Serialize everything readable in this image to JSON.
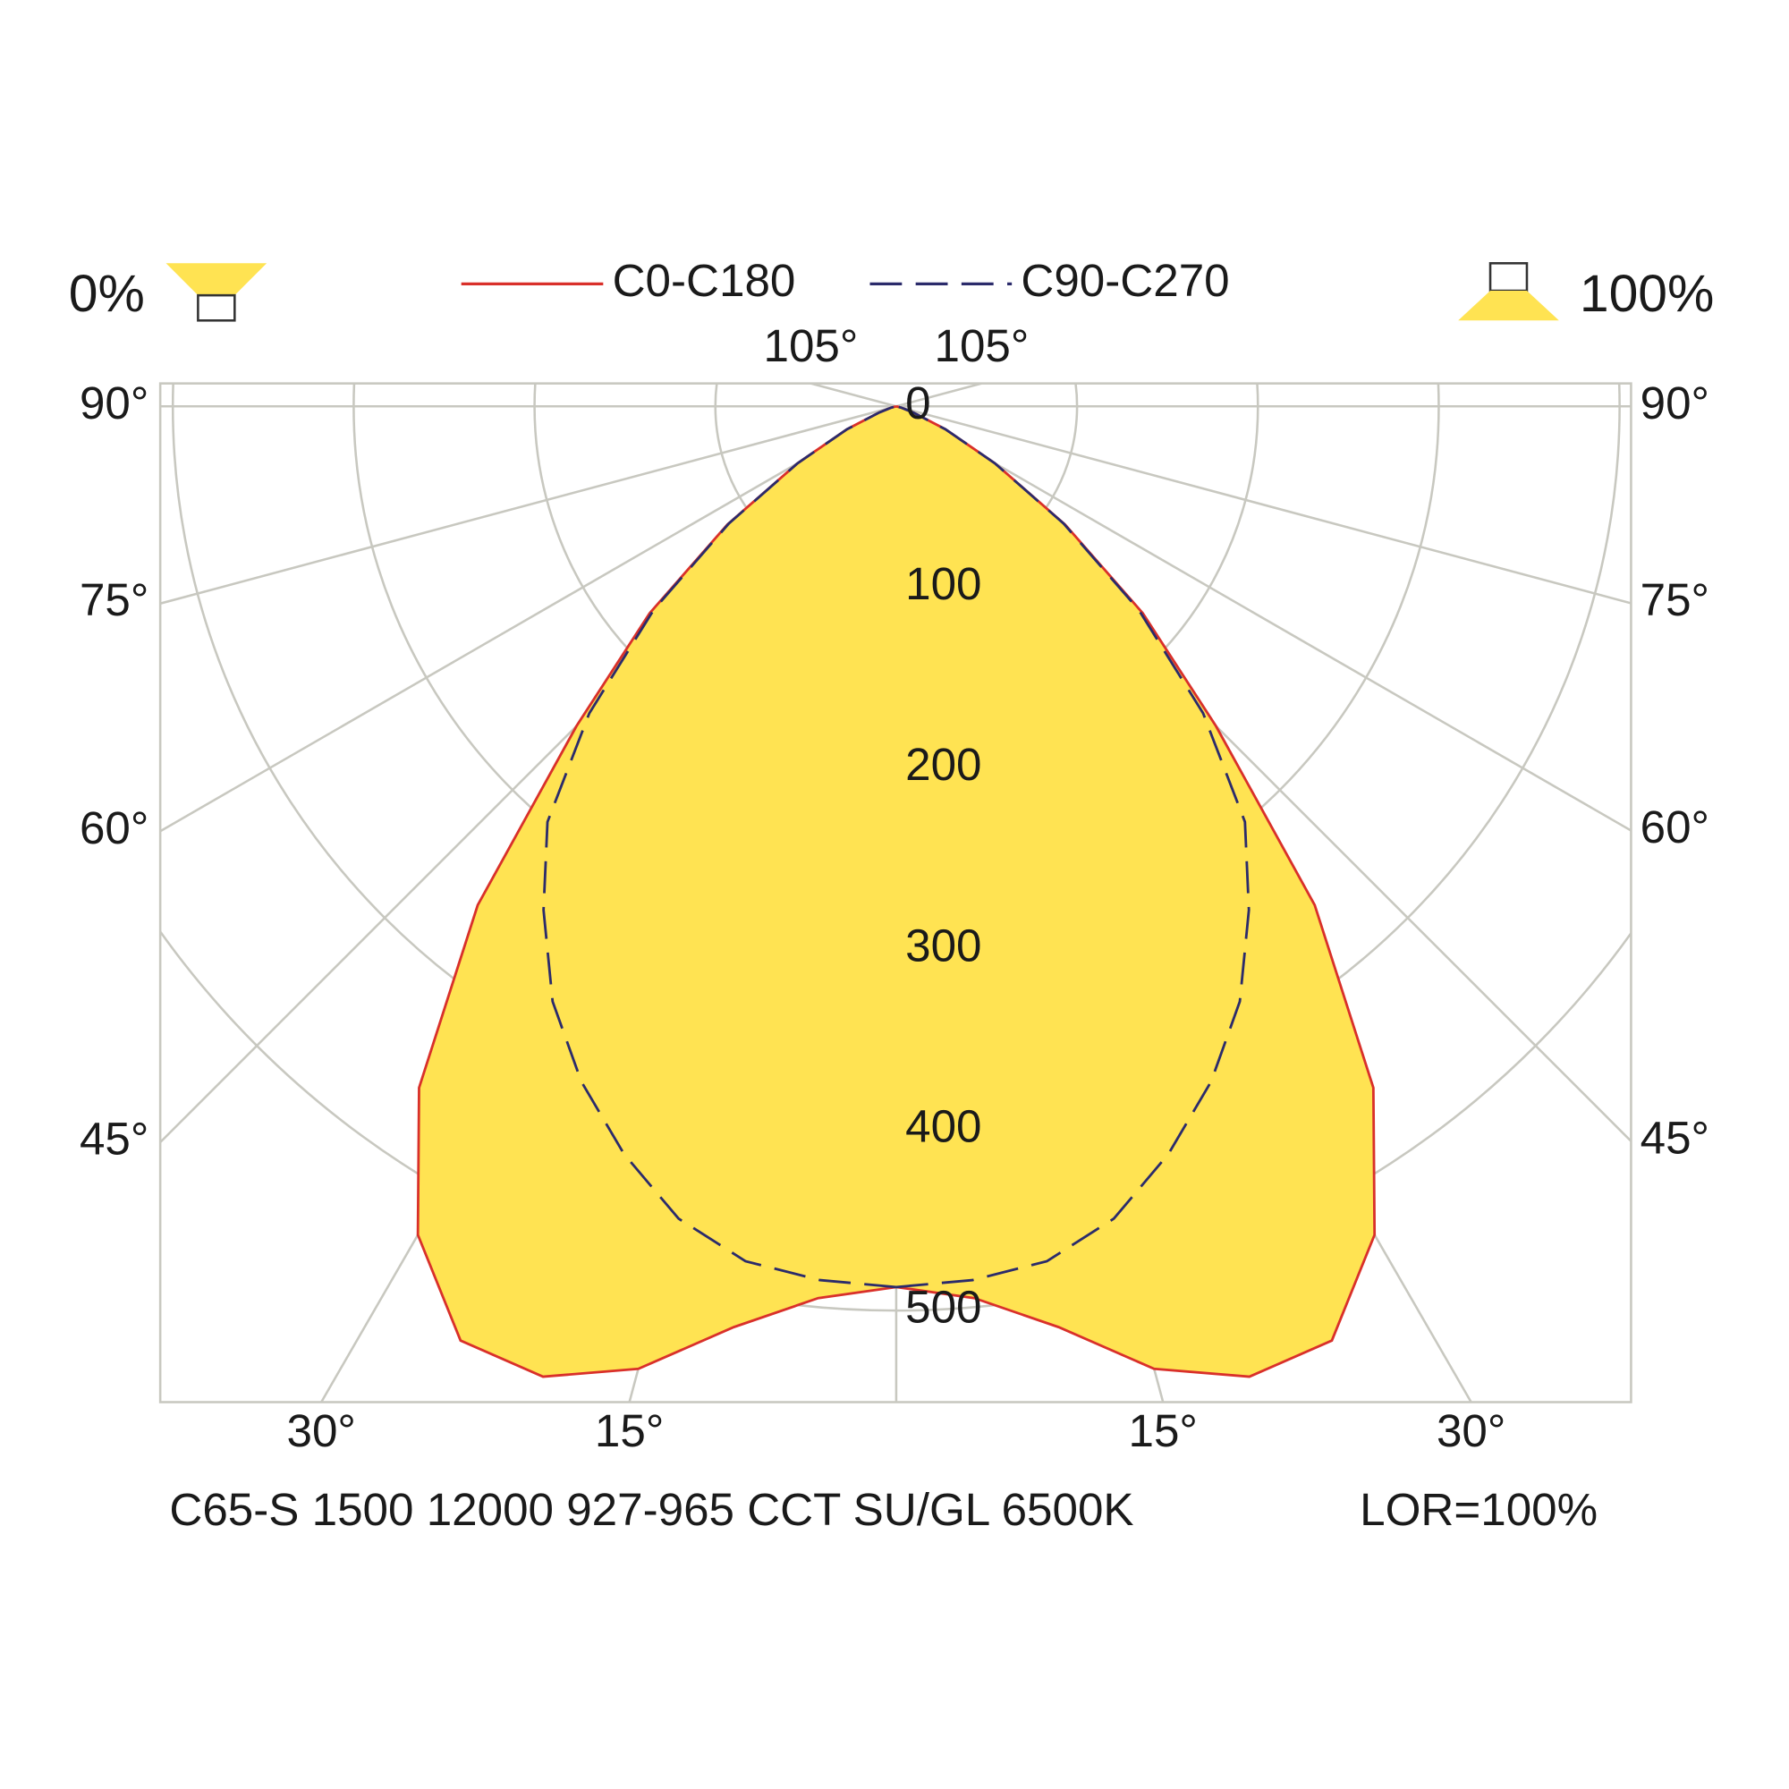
{
  "chart_data": {
    "type": "polar",
    "downward_label": "0%",
    "upward_label": "100%",
    "footer": "C65-S 1500 12000 927-965 CCT SU/GL 6500K",
    "lor": "LOR=100%",
    "angles": [
      0,
      5,
      10,
      15,
      20,
      25,
      30,
      35,
      40,
      45,
      50,
      55,
      60,
      65,
      70,
      75,
      80,
      85,
      90
    ],
    "series": [
      {
        "name": "C0-C180",
        "color": "#d9302a",
        "dashed": false,
        "values": [
          487,
          495,
          517,
          551,
          571,
          570,
          529,
          460,
          360,
          250,
          178,
          114,
          63,
          30,
          10,
          3,
          0,
          0,
          0
        ]
      },
      {
        "name": "C90-C270",
        "color": "#2b2b6b",
        "dashed": true,
        "values": [
          487,
          485,
          480,
          465,
          440,
          412,
          380,
          340,
          300,
          240,
          175,
          113,
          63,
          30,
          10,
          3,
          0,
          0,
          0
        ]
      }
    ],
    "fill": "#ffe352",
    "rlim": [
      0,
      500
    ],
    "rticks": [
      0,
      100,
      200,
      300,
      400,
      500
    ],
    "angle_ticks": [
      {
        "value": 15,
        "label": "15°"
      },
      {
        "value": 30,
        "label": "30°"
      },
      {
        "value": 45,
        "label": "45°"
      },
      {
        "value": 60,
        "label": "60°"
      },
      {
        "value": 75,
        "label": "75°"
      },
      {
        "value": 90,
        "label": "90°"
      },
      {
        "value": 105,
        "label": "105°"
      }
    ],
    "grid": true
  }
}
